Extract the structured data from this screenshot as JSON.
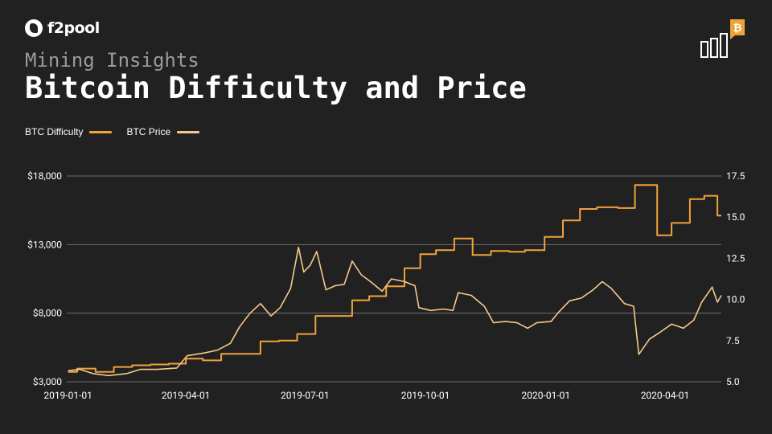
{
  "brand": {
    "name": "f2pool"
  },
  "header": {
    "subtitle": "Mining Insights",
    "title": "Bitcoin Difficulty and Price"
  },
  "icons": {
    "brand_logo": "f2pool-logo-icon",
    "corner": "bitcoin-bar-chart-icon"
  },
  "colors": {
    "background": "#222121",
    "difficulty": "#f0a23a",
    "price": "#f5c98a",
    "grid": "#707070"
  },
  "chart_data": {
    "type": "line",
    "legend_placement": "top-left",
    "grid": true,
    "x_ticks": [
      "2019-01-01",
      "2019-04-01",
      "2019-07-01",
      "2019-10-01",
      "2020-01-01",
      "2020-04-01"
    ],
    "x_range": [
      "2018-12-31",
      "2020-05-14"
    ],
    "y_left": {
      "ticks": [
        "$3,000",
        "$8,000",
        "$13,000",
        "$18,000"
      ],
      "range": [
        3000,
        18000
      ]
    },
    "y_right": {
      "ticks": [
        "5.0",
        "7.5",
        "10.0",
        "12.5",
        "15.0",
        "17.5"
      ],
      "range": [
        5.0,
        17.5
      ]
    },
    "series": [
      {
        "name": "BTC Difficulty",
        "axis": "right",
        "color": "#f0a23a",
        "step": true,
        "points": [
          [
            "2019-01-01",
            5.6
          ],
          [
            "2019-01-08",
            5.8
          ],
          [
            "2019-01-22",
            5.6
          ],
          [
            "2019-02-05",
            5.9
          ],
          [
            "2019-02-19",
            6.0
          ],
          [
            "2019-03-05",
            6.05
          ],
          [
            "2019-03-19",
            6.1
          ],
          [
            "2019-04-01",
            6.4
          ],
          [
            "2019-04-14",
            6.3
          ],
          [
            "2019-04-28",
            6.7
          ],
          [
            "2019-05-13",
            6.7
          ],
          [
            "2019-05-28",
            7.45
          ],
          [
            "2019-06-11",
            7.5
          ],
          [
            "2019-06-25",
            7.9
          ],
          [
            "2019-07-09",
            9.0
          ],
          [
            "2019-07-24",
            9.0
          ],
          [
            "2019-08-06",
            9.95
          ],
          [
            "2019-08-19",
            10.2
          ],
          [
            "2019-09-01",
            10.8
          ],
          [
            "2019-09-15",
            11.9
          ],
          [
            "2019-09-27",
            12.75
          ],
          [
            "2019-10-09",
            13.0
          ],
          [
            "2019-10-23",
            13.7
          ],
          [
            "2019-11-06",
            12.7
          ],
          [
            "2019-11-20",
            12.95
          ],
          [
            "2019-12-04",
            12.9
          ],
          [
            "2019-12-16",
            13.0
          ],
          [
            "2019-12-31",
            13.8
          ],
          [
            "2020-01-14",
            14.8
          ],
          [
            "2020-01-27",
            15.5
          ],
          [
            "2020-02-09",
            15.6
          ],
          [
            "2020-02-25",
            15.55
          ],
          [
            "2020-03-09",
            16.95
          ],
          [
            "2020-03-26",
            13.9
          ],
          [
            "2020-04-06",
            14.65
          ],
          [
            "2020-04-20",
            16.1
          ],
          [
            "2020-05-01",
            16.3
          ],
          [
            "2020-05-11",
            15.1
          ],
          [
            "2020-05-14",
            15.1
          ]
        ]
      },
      {
        "name": "BTC Price",
        "axis": "left",
        "color": "#f5c98a",
        "step": false,
        "points": [
          [
            "2019-01-01",
            3800
          ],
          [
            "2019-01-10",
            3900
          ],
          [
            "2019-01-20",
            3600
          ],
          [
            "2019-02-01",
            3450
          ],
          [
            "2019-02-15",
            3600
          ],
          [
            "2019-02-25",
            3900
          ],
          [
            "2019-03-10",
            3900
          ],
          [
            "2019-03-25",
            4000
          ],
          [
            "2019-04-02",
            4900
          ],
          [
            "2019-04-15",
            5100
          ],
          [
            "2019-04-25",
            5300
          ],
          [
            "2019-05-05",
            5800
          ],
          [
            "2019-05-12",
            7000
          ],
          [
            "2019-05-20",
            8000
          ],
          [
            "2019-05-28",
            8700
          ],
          [
            "2019-06-05",
            7800
          ],
          [
            "2019-06-12",
            8400
          ],
          [
            "2019-06-20",
            9800
          ],
          [
            "2019-06-26",
            12800
          ],
          [
            "2019-06-30",
            11000
          ],
          [
            "2019-07-05",
            11500
          ],
          [
            "2019-07-10",
            12500
          ],
          [
            "2019-07-17",
            9700
          ],
          [
            "2019-07-24",
            10000
          ],
          [
            "2019-07-31",
            10100
          ],
          [
            "2019-08-06",
            11800
          ],
          [
            "2019-08-13",
            10800
          ],
          [
            "2019-08-20",
            10300
          ],
          [
            "2019-08-29",
            9600
          ],
          [
            "2019-09-05",
            10500
          ],
          [
            "2019-09-15",
            10300
          ],
          [
            "2019-09-23",
            10000
          ],
          [
            "2019-09-26",
            8400
          ],
          [
            "2019-10-05",
            8200
          ],
          [
            "2019-10-15",
            8300
          ],
          [
            "2019-10-22",
            8200
          ],
          [
            "2019-10-26",
            9500
          ],
          [
            "2019-11-05",
            9300
          ],
          [
            "2019-11-15",
            8500
          ],
          [
            "2019-11-22",
            7300
          ],
          [
            "2019-12-01",
            7400
          ],
          [
            "2019-12-10",
            7300
          ],
          [
            "2019-12-18",
            6900
          ],
          [
            "2019-12-25",
            7300
          ],
          [
            "2020-01-05",
            7400
          ],
          [
            "2020-01-10",
            8000
          ],
          [
            "2020-01-19",
            8900
          ],
          [
            "2020-01-28",
            9100
          ],
          [
            "2020-02-06",
            9700
          ],
          [
            "2020-02-13",
            10300
          ],
          [
            "2020-02-20",
            9800
          ],
          [
            "2020-03-01",
            8700
          ],
          [
            "2020-03-08",
            8500
          ],
          [
            "2020-03-12",
            5000
          ],
          [
            "2020-03-20",
            6100
          ],
          [
            "2020-03-28",
            6600
          ],
          [
            "2020-04-06",
            7200
          ],
          [
            "2020-04-15",
            6900
          ],
          [
            "2020-04-23",
            7500
          ],
          [
            "2020-04-29",
            8800
          ],
          [
            "2020-05-07",
            9900
          ],
          [
            "2020-05-11",
            8800
          ],
          [
            "2020-05-14",
            9300
          ]
        ]
      }
    ]
  }
}
